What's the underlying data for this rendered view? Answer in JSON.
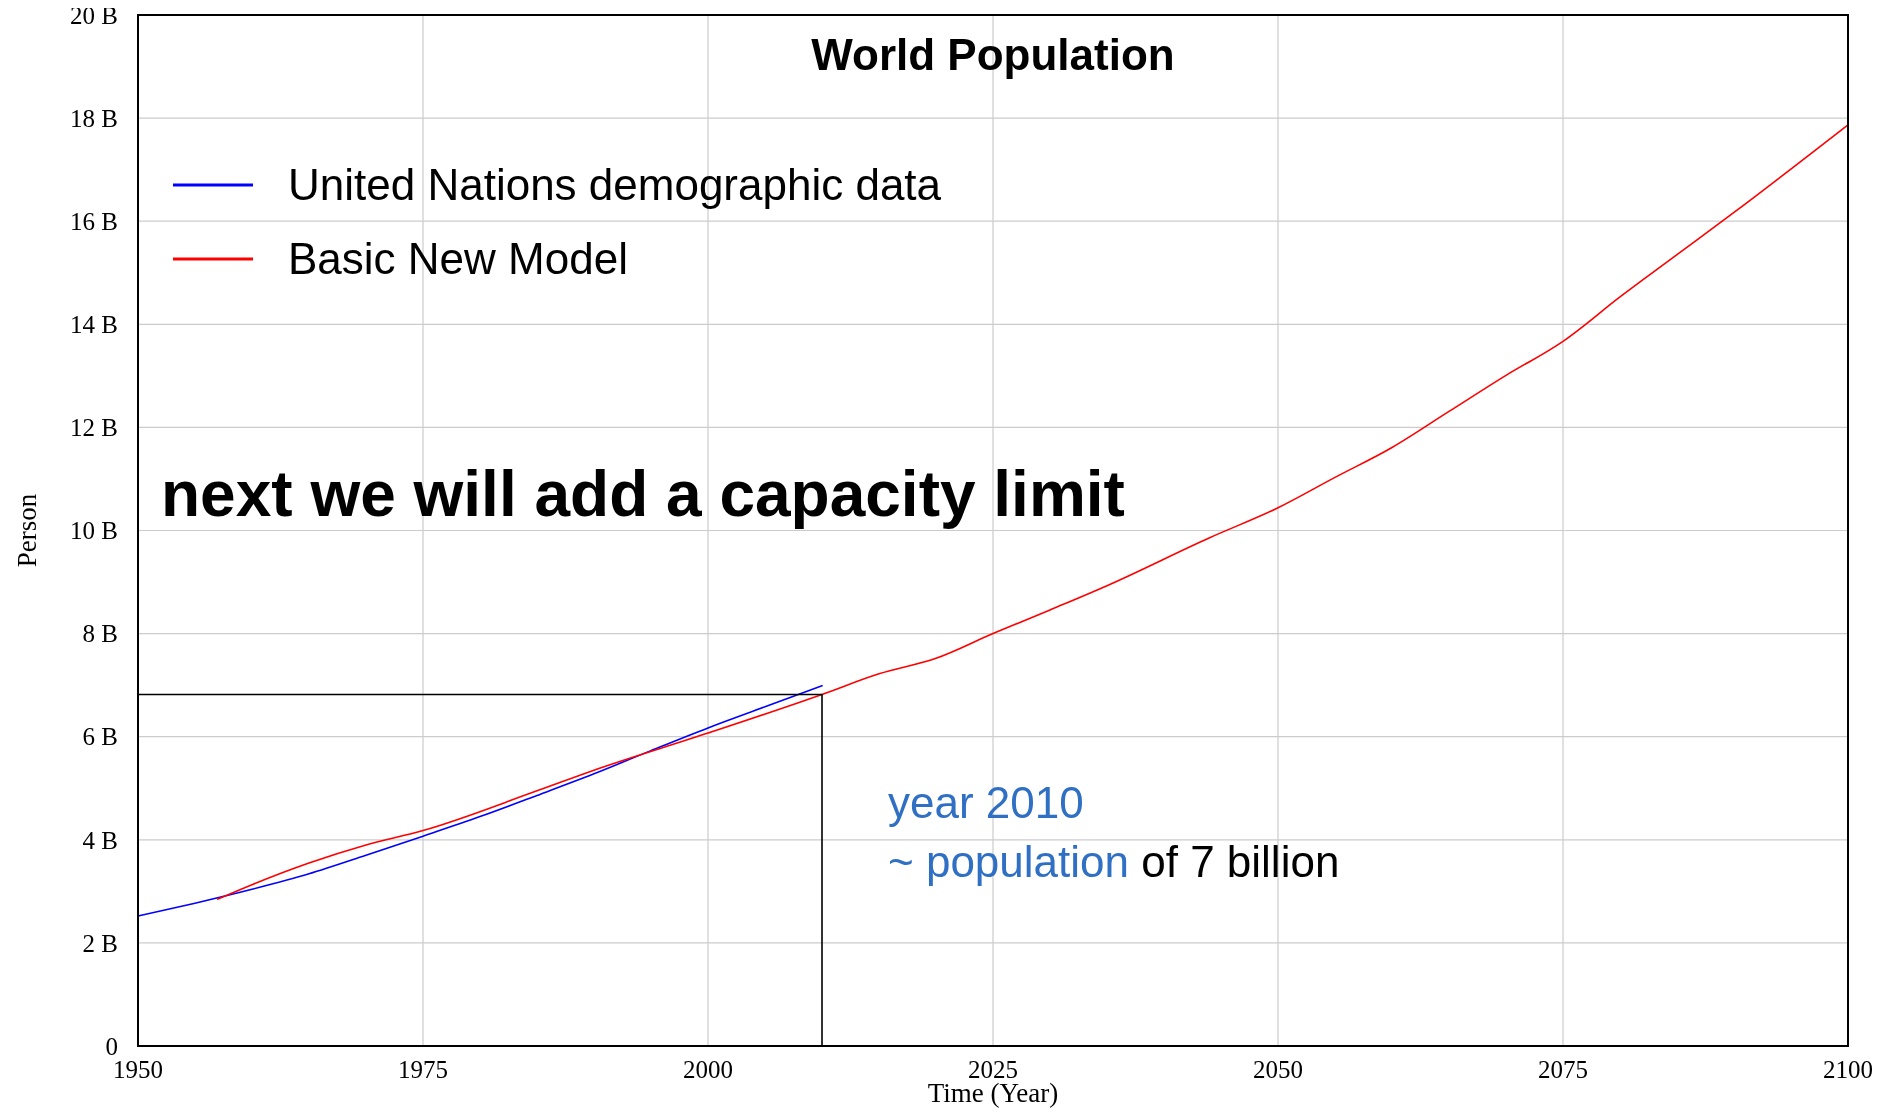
{
  "chart_data": {
    "type": "line",
    "title": "World Population",
    "xlabel": "Time (Year)",
    "ylabel": "Person",
    "xlim": [
      1950,
      2100
    ],
    "xticks": [
      1950,
      1975,
      2000,
      2025,
      2050,
      2075,
      2100
    ],
    "ylim": [
      0,
      20
    ],
    "yticks": [
      {
        "value": 0,
        "label": "0"
      },
      {
        "value": 2,
        "label": "2 B"
      },
      {
        "value": 4,
        "label": "4 B"
      },
      {
        "value": 6,
        "label": "6 B"
      },
      {
        "value": 8,
        "label": "8 B"
      },
      {
        "value": 10,
        "label": "10 B"
      },
      {
        "value": 12,
        "label": "12 B"
      },
      {
        "value": 14,
        "label": "14 B"
      },
      {
        "value": 16,
        "label": "16 B"
      },
      {
        "value": 18,
        "label": "18 B"
      },
      {
        "value": 20,
        "label": "20 B"
      }
    ],
    "grid": true,
    "legend": "top left",
    "series": [
      {
        "name": "United Nations demographic data",
        "color": "#0000ff",
        "x": [
          1950,
          1955,
          1960,
          1965,
          1970,
          1975,
          1980,
          1985,
          1990,
          1995,
          2000,
          2005,
          2010
        ],
        "values": [
          2.52,
          2.77,
          3.04,
          3.34,
          3.7,
          4.07,
          4.45,
          4.86,
          5.28,
          5.73,
          6.17,
          6.58,
          6.99
        ]
      },
      {
        "name": "Basic New Model",
        "color": "#ff0000",
        "x": [
          1957,
          1960,
          1965,
          1970,
          1975,
          1985,
          1990,
          2000,
          2010,
          2015,
          2020,
          2025,
          2030,
          2035,
          2044,
          2050,
          2055,
          2060,
          2065,
          2070,
          2075,
          2080,
          2085,
          2090,
          2100
        ],
        "values": [
          2.85,
          3.13,
          3.55,
          3.9,
          4.18,
          4.95,
          5.35,
          6.07,
          6.82,
          7.22,
          7.52,
          8.0,
          8.46,
          8.93,
          9.86,
          10.44,
          11.03,
          11.61,
          12.31,
          13.01,
          13.67,
          14.53,
          15.35,
          16.17,
          17.87
        ]
      },
      {
        "color": "#000000",
        "x": [
          1950,
          2010,
          2010
        ],
        "values": [
          6.82,
          6.82,
          0
        ]
      }
    ],
    "annotations": [
      "next we will add a capacity limit",
      "year 2010",
      "~ population",
      "of 7 billion"
    ]
  }
}
